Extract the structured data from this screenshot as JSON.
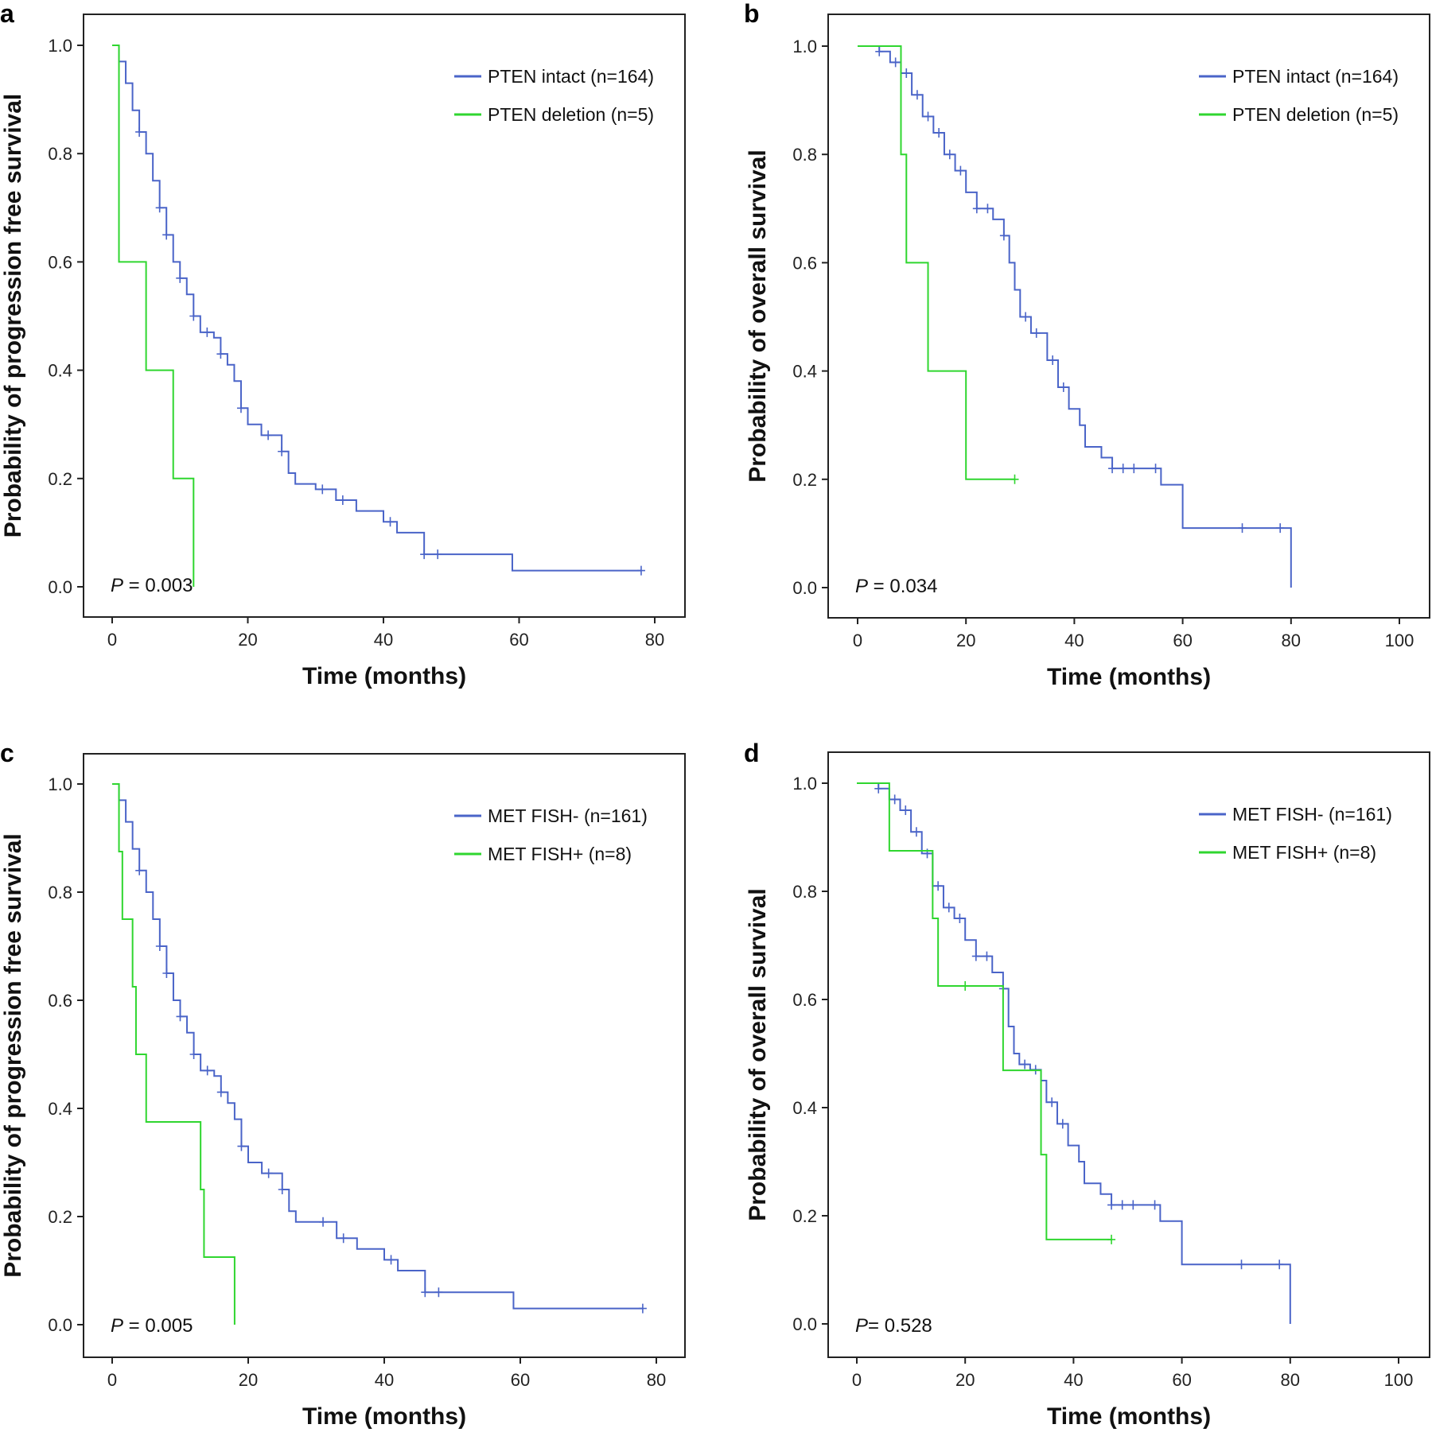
{
  "colors": {
    "intact": "#4a64c8",
    "deletion": "#2fd62f",
    "axis": "#222222"
  },
  "chart_data": [
    {
      "panel": "a",
      "type": "line",
      "xlabel": "Time (months)",
      "ylabel": "Probability of progression free survival",
      "xlim": [
        0,
        80
      ],
      "ylim": [
        0,
        1
      ],
      "xticks": [
        "0",
        "20",
        "40",
        "60",
        "80"
      ],
      "yticks": [
        "0.0",
        "0.2",
        "0.4",
        "0.6",
        "0.8",
        "1.0"
      ],
      "pvalue_prefix": "P",
      "pvalue_text": " = 0.003",
      "legend_position": "top-right",
      "series": [
        {
          "name": "PTEN intact (n=164)",
          "color": "#4a64c8",
          "points": [
            [
              0,
              1.0
            ],
            [
              1,
              0.97
            ],
            [
              2,
              0.93
            ],
            [
              3,
              0.88
            ],
            [
              4,
              0.84
            ],
            [
              5,
              0.8
            ],
            [
              6,
              0.75
            ],
            [
              7,
              0.7
            ],
            [
              8,
              0.65
            ],
            [
              9,
              0.6
            ],
            [
              10,
              0.57
            ],
            [
              11,
              0.54
            ],
            [
              12,
              0.5
            ],
            [
              13,
              0.47
            ],
            [
              15,
              0.46
            ],
            [
              16,
              0.43
            ],
            [
              17,
              0.41
            ],
            [
              18,
              0.38
            ],
            [
              19,
              0.33
            ],
            [
              20,
              0.3
            ],
            [
              22,
              0.28
            ],
            [
              25,
              0.25
            ],
            [
              26,
              0.21
            ],
            [
              27,
              0.19
            ],
            [
              30,
              0.18
            ],
            [
              33,
              0.16
            ],
            [
              36,
              0.14
            ],
            [
              40,
              0.12
            ],
            [
              42,
              0.1
            ],
            [
              46,
              0.06
            ],
            [
              58,
              0.06
            ],
            [
              59,
              0.03
            ],
            [
              78,
              0.03
            ]
          ],
          "censor": [
            4,
            7,
            8,
            10,
            12,
            14,
            16,
            19,
            23,
            25,
            31,
            34,
            41,
            46,
            48,
            78
          ]
        },
        {
          "name": "PTEN deletion (n=5)",
          "color": "#2fd62f",
          "points": [
            [
              0,
              1.0
            ],
            [
              1,
              0.8
            ],
            [
              1,
              0.6
            ],
            [
              5,
              0.6
            ],
            [
              5,
              0.4
            ],
            [
              9,
              0.4
            ],
            [
              9,
              0.2
            ],
            [
              12,
              0.2
            ],
            [
              12,
              0.0
            ]
          ],
          "censor": []
        }
      ]
    },
    {
      "panel": "b",
      "type": "line",
      "xlabel": "Time (months)",
      "ylabel": "Probability of overall survival",
      "xlim": [
        0,
        100
      ],
      "ylim": [
        0,
        1
      ],
      "xticks": [
        "0",
        "20",
        "40",
        "60",
        "80",
        "100"
      ],
      "yticks": [
        "0.0",
        "0.2",
        "0.4",
        "0.6",
        "0.8",
        "1.0"
      ],
      "pvalue_prefix": "P",
      "pvalue_text": " = 0.034",
      "legend_position": "top-right",
      "series": [
        {
          "name": "PTEN intact (n=164)",
          "color": "#4a64c8",
          "points": [
            [
              0,
              1.0
            ],
            [
              4,
              0.99
            ],
            [
              6,
              0.97
            ],
            [
              8,
              0.95
            ],
            [
              10,
              0.91
            ],
            [
              12,
              0.87
            ],
            [
              14,
              0.84
            ],
            [
              16,
              0.8
            ],
            [
              18,
              0.77
            ],
            [
              20,
              0.73
            ],
            [
              22,
              0.7
            ],
            [
              25,
              0.68
            ],
            [
              27,
              0.65
            ],
            [
              28,
              0.6
            ],
            [
              29,
              0.55
            ],
            [
              30,
              0.5
            ],
            [
              32,
              0.47
            ],
            [
              34,
              0.47
            ],
            [
              35,
              0.42
            ],
            [
              37,
              0.37
            ],
            [
              39,
              0.33
            ],
            [
              41,
              0.3
            ],
            [
              42,
              0.26
            ],
            [
              45,
              0.24
            ],
            [
              47,
              0.22
            ],
            [
              56,
              0.22
            ],
            [
              56,
              0.19
            ],
            [
              60,
              0.15
            ],
            [
              60,
              0.11
            ],
            [
              80,
              0.11
            ],
            [
              80,
              0.0
            ]
          ],
          "censor": [
            4,
            7,
            9,
            11,
            13,
            15,
            17,
            19,
            22,
            24,
            27,
            31,
            33,
            36,
            38,
            47,
            49,
            51,
            55,
            71,
            78
          ]
        },
        {
          "name": "PTEN deletion (n=5)",
          "color": "#2fd62f",
          "points": [
            [
              0,
              1.0
            ],
            [
              8,
              1.0
            ],
            [
              8,
              0.8
            ],
            [
              9,
              0.8
            ],
            [
              9,
              0.6
            ],
            [
              13,
              0.6
            ],
            [
              13,
              0.4
            ],
            [
              20,
              0.4
            ],
            [
              20,
              0.2
            ],
            [
              29,
              0.2
            ]
          ],
          "censor": [
            29
          ]
        }
      ]
    },
    {
      "panel": "c",
      "type": "line",
      "xlabel": "Time (months)",
      "ylabel": "Probability of progression free survival",
      "xlim": [
        0,
        80
      ],
      "ylim": [
        0,
        1
      ],
      "xticks": [
        "0",
        "20",
        "40",
        "60",
        "80"
      ],
      "yticks": [
        "0.0",
        "0.2",
        "0.4",
        "0.6",
        "0.8",
        "1.0"
      ],
      "pvalue_prefix": "P",
      "pvalue_text": " = 0.005",
      "legend_position": "top-right",
      "series": [
        {
          "name": "MET FISH- (n=161)",
          "color": "#4a64c8",
          "points": [
            [
              0,
              1.0
            ],
            [
              1,
              0.97
            ],
            [
              2,
              0.93
            ],
            [
              3,
              0.88
            ],
            [
              4,
              0.84
            ],
            [
              5,
              0.8
            ],
            [
              6,
              0.75
            ],
            [
              7,
              0.7
            ],
            [
              8,
              0.65
            ],
            [
              9,
              0.6
            ],
            [
              10,
              0.57
            ],
            [
              11,
              0.54
            ],
            [
              12,
              0.5
            ],
            [
              13,
              0.47
            ],
            [
              15,
              0.46
            ],
            [
              16,
              0.43
            ],
            [
              17,
              0.41
            ],
            [
              18,
              0.38
            ],
            [
              19,
              0.33
            ],
            [
              20,
              0.3
            ],
            [
              22,
              0.28
            ],
            [
              25,
              0.25
            ],
            [
              26,
              0.21
            ],
            [
              27,
              0.19
            ],
            [
              30,
              0.19
            ],
            [
              33,
              0.16
            ],
            [
              36,
              0.14
            ],
            [
              40,
              0.12
            ],
            [
              42,
              0.1
            ],
            [
              46,
              0.06
            ],
            [
              58,
              0.06
            ],
            [
              59,
              0.03
            ],
            [
              78,
              0.03
            ]
          ],
          "censor": [
            4,
            7,
            8,
            10,
            12,
            14,
            16,
            19,
            23,
            25,
            31,
            34,
            41,
            46,
            48,
            78
          ]
        },
        {
          "name": "MET FISH+ (n=8)",
          "color": "#2fd62f",
          "points": [
            [
              0,
              1.0
            ],
            [
              1,
              1.0
            ],
            [
              1,
              0.875
            ],
            [
              1.5,
              0.875
            ],
            [
              1.5,
              0.75
            ],
            [
              3,
              0.75
            ],
            [
              3,
              0.625
            ],
            [
              3.5,
              0.625
            ],
            [
              3.5,
              0.5
            ],
            [
              5,
              0.5
            ],
            [
              5,
              0.375
            ],
            [
              13,
              0.375
            ],
            [
              13,
              0.25
            ],
            [
              13.5,
              0.25
            ],
            [
              13.5,
              0.125
            ],
            [
              18,
              0.125
            ],
            [
              18,
              0.0
            ]
          ],
          "censor": []
        }
      ]
    },
    {
      "panel": "d",
      "type": "line",
      "xlabel": "Time (months)",
      "ylabel": "Probability of overall survival",
      "xlim": [
        0,
        100
      ],
      "ylim": [
        0,
        1
      ],
      "xticks": [
        "0",
        "20",
        "40",
        "60",
        "80",
        "100"
      ],
      "yticks": [
        "0.0",
        "0.2",
        "0.4",
        "0.6",
        "0.8",
        "1.0"
      ],
      "pvalue_prefix": "P",
      "pvalue_text": "= 0.528",
      "legend_position": "top-right",
      "series": [
        {
          "name": "MET FISH- (n=161)",
          "color": "#4a64c8",
          "points": [
            [
              0,
              1.0
            ],
            [
              4,
              0.99
            ],
            [
              6,
              0.97
            ],
            [
              8,
              0.95
            ],
            [
              10,
              0.91
            ],
            [
              12,
              0.87
            ],
            [
              14,
              0.81
            ],
            [
              16,
              0.77
            ],
            [
              18,
              0.75
            ],
            [
              20,
              0.71
            ],
            [
              22,
              0.68
            ],
            [
              25,
              0.65
            ],
            [
              27,
              0.62
            ],
            [
              28,
              0.55
            ],
            [
              29,
              0.5
            ],
            [
              30,
              0.48
            ],
            [
              32,
              0.47
            ],
            [
              34,
              0.45
            ],
            [
              35,
              0.41
            ],
            [
              37,
              0.37
            ],
            [
              39,
              0.33
            ],
            [
              41,
              0.3
            ],
            [
              42,
              0.26
            ],
            [
              45,
              0.24
            ],
            [
              47,
              0.22
            ],
            [
              56,
              0.22
            ],
            [
              56,
              0.19
            ],
            [
              60,
              0.15
            ],
            [
              60,
              0.11
            ],
            [
              80,
              0.11
            ],
            [
              80,
              0.0
            ]
          ],
          "censor": [
            4,
            7,
            9,
            11,
            13,
            15,
            17,
            19,
            22,
            24,
            27,
            31,
            33,
            36,
            38,
            47,
            49,
            51,
            55,
            71,
            78
          ]
        },
        {
          "name": "MET FISH+ (n=8)",
          "color": "#2fd62f",
          "points": [
            [
              0,
              1.0
            ],
            [
              6,
              1.0
            ],
            [
              6,
              0.875
            ],
            [
              14,
              0.875
            ],
            [
              14,
              0.75
            ],
            [
              15,
              0.75
            ],
            [
              15,
              0.625
            ],
            [
              27,
              0.625
            ],
            [
              27,
              0.469
            ],
            [
              34,
              0.469
            ],
            [
              34,
              0.313
            ],
            [
              35,
              0.313
            ],
            [
              35,
              0.156
            ],
            [
              47,
              0.156
            ]
          ],
          "censor": [
            20,
            47
          ]
        }
      ]
    }
  ]
}
